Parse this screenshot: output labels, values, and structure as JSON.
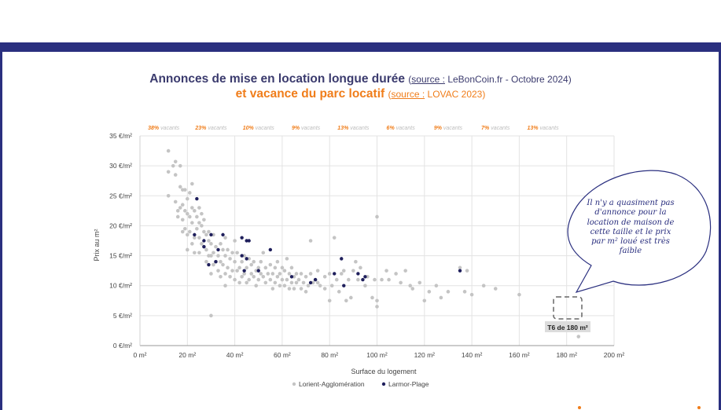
{
  "title": {
    "line1_main": "Annonces de mise en location longue durée",
    "line1_source_label": "source :",
    "line1_source_value": "LeBonCoin.fr - Octobre 2024)",
    "line1_open": "(",
    "line2_main": "et vacance du parc locatif",
    "line2_open": "(",
    "line2_source_label": "source :",
    "line2_source_value": "LOVAC 2023)"
  },
  "vacancy_labels": [
    "38% vacants",
    "23% vacants",
    "10% vacants",
    "9% vacants",
    "13% vacants",
    "6% vacants",
    "9% vacants",
    "7% vacants",
    "13% vacants"
  ],
  "callout": {
    "text": "Il n'y a quasiment pas d'annonce pour la location de maison de cette taille et le prix par m² loué est très faible",
    "box_label": "T6 de 180 m²"
  },
  "colors": {
    "frame": "#2a2f7f",
    "title_main": "#3b3b6e",
    "title_accent": "#f07d1a",
    "series_lorient": "#c4c4c4",
    "series_larmor": "#1f1f5c"
  },
  "chart_data": {
    "type": "scatter",
    "xlabel": "Surface du logement",
    "ylabel": "Prix au m²",
    "xlim": [
      0,
      200
    ],
    "ylim": [
      0,
      35
    ],
    "x_ticks": [
      "0 m²",
      "20 m²",
      "40 m²",
      "60 m²",
      "80 m²",
      "100 m²",
      "120 m²",
      "140 m²",
      "160 m²",
      "180 m²",
      "200 m²"
    ],
    "y_ticks": [
      "0 €/m²",
      "5 €/m²",
      "10 €/m²",
      "15 €/m²",
      "20 €/m²",
      "25 €/m²",
      "30 €/m²",
      "35 €/m²"
    ],
    "grid": true,
    "legend": "bottom",
    "series": [
      {
        "name": "Lorient-Agglomération",
        "points": [
          [
            12,
            32.5
          ],
          [
            12,
            29
          ],
          [
            12,
            25
          ],
          [
            14,
            30
          ],
          [
            15,
            30.7
          ],
          [
            15,
            28.5
          ],
          [
            15,
            24
          ],
          [
            16,
            22.5
          ],
          [
            16,
            21.5
          ],
          [
            17,
            30
          ],
          [
            17,
            26.5
          ],
          [
            17,
            23
          ],
          [
            18,
            26
          ],
          [
            18,
            23.5
          ],
          [
            18,
            21
          ],
          [
            18,
            19
          ],
          [
            19,
            26
          ],
          [
            19,
            22.5
          ],
          [
            19,
            19.5
          ],
          [
            20,
            24.5
          ],
          [
            20,
            22
          ],
          [
            20,
            18.5
          ],
          [
            20,
            16
          ],
          [
            21,
            25.5
          ],
          [
            21,
            21.5
          ],
          [
            21,
            19
          ],
          [
            22,
            27
          ],
          [
            22,
            23
          ],
          [
            22,
            20.5
          ],
          [
            22,
            17
          ],
          [
            23,
            22.5
          ],
          [
            23,
            18
          ],
          [
            23,
            15.5
          ],
          [
            24,
            21.5
          ],
          [
            24,
            19.5
          ],
          [
            25,
            23
          ],
          [
            25,
            20.5
          ],
          [
            25,
            18
          ],
          [
            25,
            15.5
          ],
          [
            26,
            22
          ],
          [
            26,
            20
          ],
          [
            26,
            17
          ],
          [
            27,
            21
          ],
          [
            27,
            19
          ],
          [
            27,
            16.5
          ],
          [
            28,
            18.5
          ],
          [
            28,
            16
          ],
          [
            28,
            14
          ],
          [
            29,
            19
          ],
          [
            29,
            17.5
          ],
          [
            29,
            15
          ],
          [
            30,
            5
          ],
          [
            30,
            17
          ],
          [
            30,
            15
          ],
          [
            30,
            12
          ],
          [
            31,
            18.5
          ],
          [
            31,
            15.5
          ],
          [
            31,
            13.5
          ],
          [
            32,
            16.5
          ],
          [
            32,
            14
          ],
          [
            33,
            15
          ],
          [
            33,
            12.5
          ],
          [
            34,
            17
          ],
          [
            34,
            14
          ],
          [
            34,
            11.5
          ],
          [
            35,
            16
          ],
          [
            35,
            13.5
          ],
          [
            36,
            18
          ],
          [
            36,
            15
          ],
          [
            36,
            12
          ],
          [
            36,
            10
          ],
          [
            37,
            16
          ],
          [
            37,
            13
          ],
          [
            38,
            14.5
          ],
          [
            38,
            11.5
          ],
          [
            39,
            15.5
          ],
          [
            39,
            12.5
          ],
          [
            40,
            14
          ],
          [
            40,
            11
          ],
          [
            40,
            17.5
          ],
          [
            41,
            12.5
          ],
          [
            41,
            15.5
          ],
          [
            42,
            13
          ],
          [
            42,
            10.5
          ],
          [
            43,
            14
          ],
          [
            43,
            11.5
          ],
          [
            44,
            15
          ],
          [
            44,
            12
          ],
          [
            45,
            13
          ],
          [
            45,
            10.5
          ],
          [
            46,
            14.5
          ],
          [
            46,
            11
          ],
          [
            47,
            12
          ],
          [
            47,
            13.5
          ],
          [
            48,
            11.5
          ],
          [
            48,
            14
          ],
          [
            49,
            12.5
          ],
          [
            49,
            10
          ],
          [
            50,
            13
          ],
          [
            50,
            11
          ],
          [
            51,
            12
          ],
          [
            51,
            14
          ],
          [
            52,
            11.5
          ],
          [
            52,
            15.5
          ],
          [
            53,
            10.5
          ],
          [
            53,
            13
          ],
          [
            54,
            12
          ],
          [
            55,
            11
          ],
          [
            55,
            13.5
          ],
          [
            56,
            9.5
          ],
          [
            56,
            12
          ],
          [
            57,
            10.5
          ],
          [
            57,
            13
          ],
          [
            58,
            11.5
          ],
          [
            58,
            14
          ],
          [
            59,
            10
          ],
          [
            59,
            12
          ],
          [
            60,
            13
          ],
          [
            60,
            11
          ],
          [
            61,
            12.5
          ],
          [
            61,
            10
          ],
          [
            62,
            14.5
          ],
          [
            62,
            11
          ],
          [
            63,
            12
          ],
          [
            63,
            9.5
          ],
          [
            64,
            13
          ],
          [
            64,
            10.5
          ],
          [
            65,
            11.5
          ],
          [
            65,
            9.5
          ],
          [
            66,
            12
          ],
          [
            66,
            10.5
          ],
          [
            67,
            11
          ],
          [
            68,
            12
          ],
          [
            68,
            9.5
          ],
          [
            69,
            10.5
          ],
          [
            70,
            11.5
          ],
          [
            70,
            9
          ],
          [
            71,
            10
          ],
          [
            72,
            17.5
          ],
          [
            72,
            12
          ],
          [
            73,
            10.5
          ],
          [
            74,
            11
          ],
          [
            75,
            12.5
          ],
          [
            75,
            10.5
          ],
          [
            76,
            10
          ],
          [
            78,
            9.5
          ],
          [
            78,
            11.5
          ],
          [
            80,
            12
          ],
          [
            80,
            7.5
          ],
          [
            81,
            10
          ],
          [
            82,
            18
          ],
          [
            83,
            11
          ],
          [
            84,
            9
          ],
          [
            85,
            12
          ],
          [
            86,
            12.5
          ],
          [
            87,
            7.5
          ],
          [
            88,
            11
          ],
          [
            89,
            8
          ],
          [
            90,
            12.5
          ],
          [
            91,
            14
          ],
          [
            92,
            11
          ],
          [
            93,
            13
          ],
          [
            95,
            10
          ],
          [
            96,
            11.5
          ],
          [
            98,
            8
          ],
          [
            99,
            11
          ],
          [
            100,
            21.5
          ],
          [
            100,
            7.5
          ],
          [
            100,
            6.5
          ],
          [
            102,
            11
          ],
          [
            104,
            12.5
          ],
          [
            105,
            11
          ],
          [
            108,
            12
          ],
          [
            110,
            10.5
          ],
          [
            112,
            12.5
          ],
          [
            115,
            9.5
          ],
          [
            118,
            10.5
          ],
          [
            120,
            7.5
          ],
          [
            122,
            9
          ],
          [
            125,
            10
          ],
          [
            127,
            8
          ],
          [
            130,
            9
          ],
          [
            135,
            13
          ],
          [
            137,
            9
          ],
          [
            138,
            12.5
          ],
          [
            140,
            8.5
          ],
          [
            145,
            10
          ],
          [
            150,
            9.5
          ],
          [
            160,
            8.5
          ],
          [
            185,
            1.5
          ],
          [
            114,
            10
          ]
        ]
      },
      {
        "name": "Larmor-Plage",
        "points": [
          [
            24,
            24.5
          ],
          [
            23,
            18.5
          ],
          [
            27,
            17.5
          ],
          [
            27,
            16.5
          ],
          [
            29,
            13.5
          ],
          [
            30,
            18.5
          ],
          [
            32,
            14
          ],
          [
            33,
            16
          ],
          [
            35,
            18.5
          ],
          [
            43,
            18
          ],
          [
            43,
            15
          ],
          [
            44,
            12.5
          ],
          [
            45,
            17.5
          ],
          [
            45,
            14.5
          ],
          [
            46,
            17.5
          ],
          [
            50,
            12.5
          ],
          [
            55,
            16
          ],
          [
            64,
            11.5
          ],
          [
            72,
            10.5
          ],
          [
            74,
            11
          ],
          [
            82,
            12
          ],
          [
            85,
            14.5
          ],
          [
            86,
            10
          ],
          [
            92,
            12
          ],
          [
            95,
            11.5
          ],
          [
            94,
            11
          ],
          [
            135,
            12.5
          ]
        ]
      }
    ]
  }
}
